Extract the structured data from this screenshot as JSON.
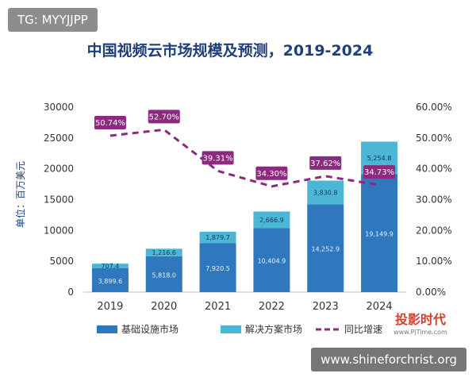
{
  "watermark_tag": "TG: MYYJJPP",
  "site_tag": "www.shineforchrist.org",
  "logo": {
    "text": "投影时代",
    "sub": "www.PjTime.com"
  },
  "chart_data": {
    "type": "bar",
    "title": "中国视频云市场规模及预测，2019-2024",
    "ylabel": "单位：百万美元",
    "categories": [
      "2019",
      "2020",
      "2021",
      "2022",
      "2023",
      "2024"
    ],
    "ylim": [
      0,
      30000
    ],
    "y_ticks": [
      "0",
      "5000",
      "10000",
      "15000",
      "20000",
      "25000",
      "30000"
    ],
    "y2lim": [
      0,
      60
    ],
    "y2_ticks": [
      "0.00%",
      "10.00%",
      "20.00%",
      "30.00%",
      "40.00%",
      "50.00%",
      "60.00%"
    ],
    "stacked": true,
    "series": [
      {
        "name": "基础设施市场",
        "values": [
          3899.6,
          5818.0,
          7920.5,
          10404.9,
          14252.9,
          19149.9
        ],
        "labels": [
          "3,899.6",
          "5,818.0",
          "7,920.5",
          "10,404.9",
          "14,252.9",
          "19,149.9"
        ],
        "color": "#2f78be"
      },
      {
        "name": "解决方案市场",
        "values": [
          707.4,
          1216.6,
          1879.7,
          2666.9,
          3830.8,
          5254.8
        ],
        "labels": [
          "707.4",
          "1,216.6",
          "1,879.7",
          "2,666.9",
          "3,830.8",
          "5,254.8"
        ],
        "color": "#4cb7d4"
      }
    ],
    "line": {
      "name": "同比增速",
      "values": [
        50.74,
        52.7,
        39.31,
        34.3,
        37.62,
        34.73
      ],
      "labels": [
        "50.74%",
        "52.70%",
        "39.31%",
        "34.30%",
        "37.62%",
        "34.73%"
      ],
      "color": "#8b2a7f"
    },
    "legend_position": "bottom",
    "grid": false
  }
}
